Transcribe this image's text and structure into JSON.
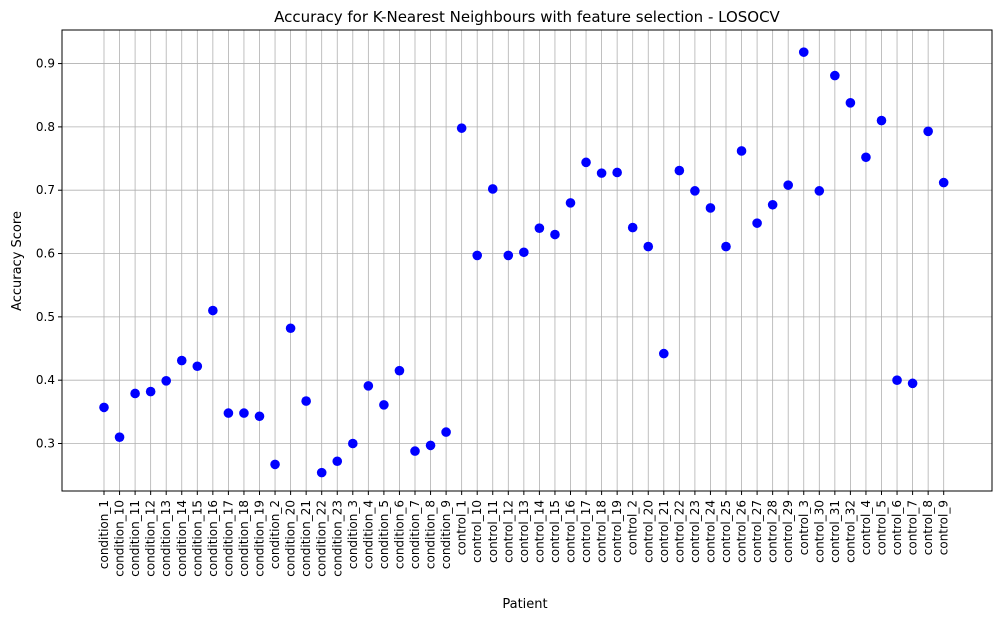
{
  "chart_data": {
    "type": "scatter",
    "title": "Accuracy for K-Nearest Neighbours with feature selection - LOSOCV",
    "xlabel": "Patient",
    "ylabel": "Accuracy Score",
    "ylim": [
      0.225,
      0.953
    ],
    "yticks": [
      0.3,
      0.4,
      0.5,
      0.6,
      0.7,
      0.8,
      0.9
    ],
    "grid": true,
    "marker_color": "#0000ff",
    "categories": [
      "condition_1",
      "condition_10",
      "condition_11",
      "condition_12",
      "condition_13",
      "condition_14",
      "condition_15",
      "condition_16",
      "condition_17",
      "condition_18",
      "condition_19",
      "condition_2",
      "condition_20",
      "condition_21",
      "condition_22",
      "condition_23",
      "condition_3",
      "condition_4",
      "condition_5",
      "condition_6",
      "condition_7",
      "condition_8",
      "condition_9",
      "control_1",
      "control_10",
      "control_11",
      "control_12",
      "control_13",
      "control_14",
      "control_15",
      "control_16",
      "control_17",
      "control_18",
      "control_19",
      "control_2",
      "control_20",
      "control_21",
      "control_22",
      "control_23",
      "control_24",
      "control_25",
      "control_26",
      "control_27",
      "control_28",
      "control_29",
      "control_3",
      "control_30",
      "control_31",
      "control_32",
      "control_4",
      "control_5",
      "control_6",
      "control_7",
      "control_8",
      "control_9"
    ],
    "values": [
      0.357,
      0.31,
      0.379,
      0.382,
      0.399,
      0.431,
      0.422,
      0.51,
      0.348,
      0.348,
      0.343,
      0.267,
      0.482,
      0.367,
      0.254,
      0.272,
      0.3,
      0.391,
      0.361,
      0.415,
      0.288,
      0.297,
      0.318,
      0.798,
      0.597,
      0.702,
      0.597,
      0.602,
      0.64,
      0.63,
      0.68,
      0.744,
      0.727,
      0.728,
      0.641,
      0.611,
      0.442,
      0.731,
      0.699,
      0.672,
      0.611,
      0.762,
      0.648,
      0.677,
      0.708,
      0.918,
      0.699,
      0.881,
      0.838,
      0.752,
      0.81,
      0.4,
      0.395,
      0.793,
      0.712
    ]
  }
}
